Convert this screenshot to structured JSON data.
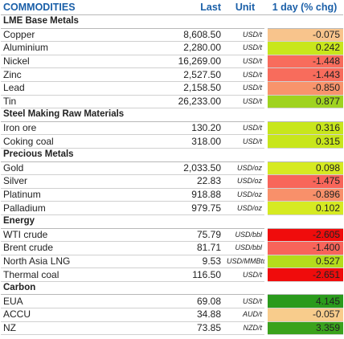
{
  "header": {
    "name": "COMMODITIES",
    "last": "Last",
    "unit": "Unit",
    "change": "1 day (% chg)"
  },
  "sections": [
    {
      "title": "LME Base Metals",
      "rows": [
        {
          "name": "Copper",
          "last": "8,608.50",
          "unit": "USD/t",
          "change": "-0.075",
          "color": "#f8c48c"
        },
        {
          "name": "Aluminium",
          "last": "2,280.00",
          "unit": "USD/t",
          "change": "0.242",
          "color": "#c8e61c"
        },
        {
          "name": "Nickel",
          "last": "16,269.00",
          "unit": "USD/t",
          "change": "-1.448",
          "color": "#f86c5c"
        },
        {
          "name": "Zinc",
          "last": "2,527.50",
          "unit": "USD/t",
          "change": "-1.443",
          "color": "#f86c5c"
        },
        {
          "name": "Lead",
          "last": "2,158.50",
          "unit": "USD/t",
          "change": "-0.850",
          "color": "#f8946c"
        },
        {
          "name": "Tin",
          "last": "26,233.00",
          "unit": "USD/t",
          "change": "0.877",
          "color": "#9fd320"
        }
      ]
    },
    {
      "title": "Steel Making Raw Materials",
      "rows": [
        {
          "name": "Iron ore",
          "last": "130.20",
          "unit": "USD/t",
          "change": "0.316",
          "color": "#c8e61c"
        },
        {
          "name": "Coking coal",
          "last": "318.00",
          "unit": "USD/t",
          "change": "0.315",
          "color": "#c8e61c"
        }
      ]
    },
    {
      "title": "Precious Metals",
      "rows": [
        {
          "name": "Gold",
          "last": "2,033.50",
          "unit": "USD/oz",
          "change": "0.098",
          "color": "#d6ea22"
        },
        {
          "name": "Silver",
          "last": "22.83",
          "unit": "USD/oz",
          "change": "-1.475",
          "color": "#f8665a"
        },
        {
          "name": "Platinum",
          "last": "918.88",
          "unit": "USD/oz",
          "change": "-0.896",
          "color": "#f8906a"
        },
        {
          "name": "Palladium",
          "last": "979.75",
          "unit": "USD/oz",
          "change": "0.102",
          "color": "#d6ea22"
        }
      ]
    },
    {
      "title": "Energy",
      "rows": [
        {
          "name": "WTI crude",
          "last": "75.79",
          "unit": "USD/bbl",
          "change": "-2.605",
          "color": "#f00c0c"
        },
        {
          "name": "Brent crude",
          "last": "81.71",
          "unit": "USD/bbl",
          "change": "-1.400",
          "color": "#f8645a"
        },
        {
          "name": "North Asia LNG",
          "last": "9.53",
          "unit": "USD/MMBtu",
          "change": "0.527",
          "color": "#b4dc1c"
        },
        {
          "name": "Thermal coal",
          "last": "116.50",
          "unit": "USD/t",
          "change": "-2.651",
          "color": "#f00c0c"
        }
      ]
    },
    {
      "title": "Carbon",
      "rows": [
        {
          "name": "EUA",
          "last": "69.08",
          "unit": "USD/t",
          "change": "4.145",
          "color": "#2a9a1c"
        },
        {
          "name": "ACCU",
          "last": "34.88",
          "unit": "AUD/t",
          "change": "-0.057",
          "color": "#f8cc8c"
        },
        {
          "name": "NZ",
          "last": "73.85",
          "unit": "NZD/t",
          "change": "3.359",
          "color": "#3aa21c"
        }
      ]
    }
  ]
}
